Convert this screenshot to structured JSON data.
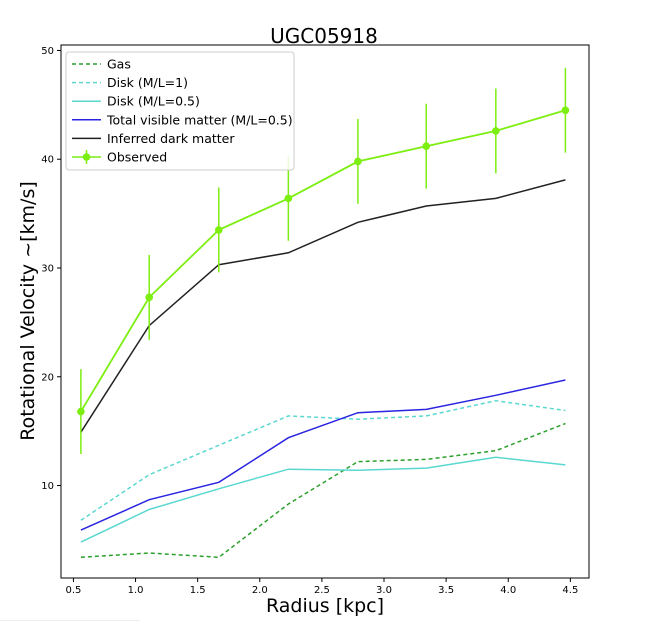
{
  "chart_data": {
    "type": "line",
    "title": "UGC05918",
    "xlabel": "Radius [kpc]",
    "ylabel": "Rotational Velocity ~[km/s]",
    "xlim": [
      0.4,
      4.65
    ],
    "ylim": [
      1.5,
      50.5
    ],
    "xticks": [
      "0.5",
      "1.0",
      "1.5",
      "2.0",
      "2.5",
      "3.0",
      "3.5",
      "4.0",
      "4.5"
    ],
    "yticks": [
      "10",
      "20",
      "30",
      "40",
      "50"
    ],
    "legend_position": "top-left",
    "grid": false,
    "x": [
      0.56,
      1.11,
      1.67,
      2.23,
      2.79,
      3.34,
      3.9,
      4.46
    ],
    "series": [
      {
        "name": "Gas",
        "color": "#2ca02c",
        "style": "dashed",
        "values": [
          3.4,
          3.8,
          3.4,
          8.3,
          12.2,
          12.4,
          13.2,
          15.7
        ]
      },
      {
        "name": "Disk (M/L=1)",
        "color": "#5ad8d0",
        "style": "dashed",
        "values": [
          6.8,
          11.0,
          13.7,
          16.4,
          16.1,
          16.4,
          17.8,
          16.9
        ]
      },
      {
        "name": "Disk (M/L=0.5)",
        "color": "#5ad8d0",
        "style": "solid",
        "values": [
          4.8,
          7.8,
          9.7,
          11.5,
          11.4,
          11.6,
          12.6,
          11.9
        ]
      },
      {
        "name": "Total visible matter (M/L=0.5)",
        "color": "#2a24e0",
        "style": "solid",
        "values": [
          5.9,
          8.7,
          10.3,
          14.4,
          16.7,
          17.0,
          18.3,
          19.7
        ]
      },
      {
        "name": "Inferred dark matter",
        "color": "#222222",
        "style": "solid",
        "values": [
          14.9,
          24.7,
          30.3,
          31.4,
          34.2,
          35.7,
          36.4,
          38.1
        ]
      },
      {
        "name": "Observed",
        "color": "#7cee10",
        "style": "solid-markers",
        "values": [
          16.8,
          27.3,
          33.5,
          36.4,
          39.8,
          41.2,
          42.6,
          44.5
        ],
        "errors": [
          3.9,
          3.9,
          3.9,
          3.9,
          3.9,
          3.9,
          3.9,
          3.9
        ]
      }
    ]
  }
}
